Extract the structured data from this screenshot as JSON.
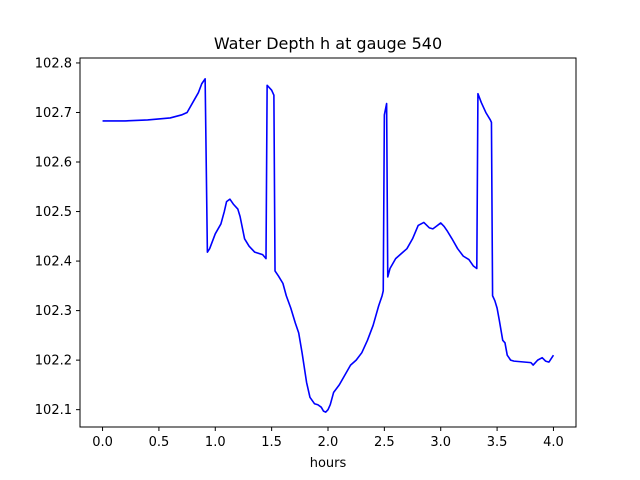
{
  "chart_data": {
    "type": "line",
    "title": "Water Depth h at gauge 540",
    "xlabel": "hours",
    "ylabel": "",
    "xlim": [
      -0.2,
      4.2
    ],
    "ylim": [
      102.065,
      102.81
    ],
    "xticks": [
      0.0,
      0.5,
      1.0,
      1.5,
      2.0,
      2.5,
      3.0,
      3.5,
      4.0
    ],
    "xtick_labels": [
      "0.0",
      "0.5",
      "1.0",
      "1.5",
      "2.0",
      "2.5",
      "3.0",
      "3.5",
      "4.0"
    ],
    "yticks": [
      102.1,
      102.2,
      102.3,
      102.4,
      102.5,
      102.6,
      102.7,
      102.8
    ],
    "ytick_labels": [
      "102.1",
      "102.2",
      "102.3",
      "102.4",
      "102.5",
      "102.6",
      "102.7",
      "102.8"
    ],
    "grid": false,
    "series": [
      {
        "color": "#0000ff",
        "x": [
          0.0,
          0.2,
          0.4,
          0.6,
          0.7,
          0.75,
          0.8,
          0.85,
          0.88,
          0.91,
          0.93,
          0.95,
          1.0,
          1.05,
          1.08,
          1.1,
          1.13,
          1.16,
          1.2,
          1.22,
          1.26,
          1.3,
          1.35,
          1.42,
          1.45,
          1.46,
          1.5,
          1.52,
          1.53,
          1.56,
          1.6,
          1.63,
          1.67,
          1.71,
          1.74,
          1.77,
          1.81,
          1.84,
          1.88,
          1.91,
          1.94,
          1.96,
          1.98,
          2.0,
          2.02,
          2.05,
          2.1,
          2.15,
          2.2,
          2.25,
          2.3,
          2.35,
          2.4,
          2.45,
          2.48,
          2.49,
          2.5,
          2.52,
          2.53,
          2.55,
          2.6,
          2.65,
          2.7,
          2.75,
          2.8,
          2.85,
          2.9,
          2.93,
          2.96,
          3.0,
          3.03,
          3.06,
          3.1,
          3.15,
          3.2,
          3.25,
          3.29,
          3.32,
          3.33,
          3.36,
          3.4,
          3.44,
          3.45,
          3.46,
          3.48,
          3.5,
          3.52,
          3.55,
          3.57,
          3.59,
          3.62,
          3.65,
          3.7,
          3.75,
          3.8,
          3.82,
          3.86,
          3.9,
          3.93,
          3.96,
          4.0
        ],
        "y": [
          102.683,
          102.683,
          102.685,
          102.689,
          102.695,
          102.7,
          102.72,
          102.74,
          102.758,
          102.768,
          102.418,
          102.425,
          102.455,
          102.475,
          102.5,
          102.52,
          102.525,
          102.515,
          102.505,
          102.49,
          102.445,
          102.43,
          102.418,
          102.413,
          102.405,
          102.755,
          102.745,
          102.735,
          102.38,
          102.37,
          102.355,
          102.33,
          102.305,
          102.275,
          102.255,
          102.215,
          102.155,
          102.125,
          102.112,
          102.11,
          102.105,
          102.097,
          102.095,
          102.1,
          102.11,
          102.135,
          102.15,
          102.17,
          102.19,
          102.2,
          102.215,
          102.24,
          102.27,
          102.31,
          102.33,
          102.34,
          102.695,
          102.718,
          102.368,
          102.385,
          102.405,
          102.415,
          102.425,
          102.445,
          102.472,
          102.478,
          102.467,
          102.465,
          102.47,
          102.477,
          102.47,
          102.46,
          102.445,
          102.425,
          102.41,
          102.403,
          102.39,
          102.385,
          102.738,
          102.72,
          102.7,
          102.685,
          102.68,
          102.33,
          102.32,
          102.305,
          102.28,
          102.24,
          102.235,
          102.21,
          102.2,
          102.198,
          102.197,
          102.196,
          102.195,
          102.19,
          102.2,
          102.205,
          102.198,
          102.196,
          102.21
        ]
      }
    ]
  }
}
